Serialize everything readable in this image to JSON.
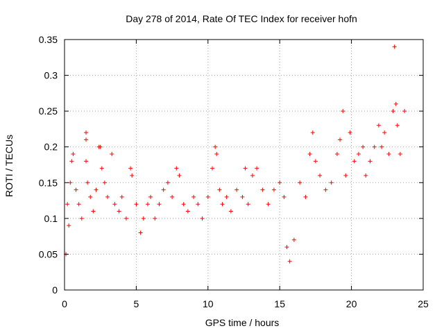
{
  "chart_data": {
    "type": "scatter",
    "title": "Day 278 of 2014, Rate Of TEC Index for receiver hofn",
    "xlabel": "GPS time / hours",
    "ylabel": "ROTI / TECUs",
    "xlim": [
      0,
      25
    ],
    "ylim": [
      0,
      0.35
    ],
    "xticks": [
      0,
      5,
      10,
      15,
      20,
      25
    ],
    "xtick_labels": [
      "0",
      "5",
      "10",
      "15",
      "20",
      "25"
    ],
    "yticks": [
      0,
      0.05,
      0.1,
      0.15,
      0.2,
      0.25,
      0.3,
      0.35
    ],
    "ytick_labels": [
      "0",
      "0.05",
      "0.1",
      "0.15",
      "0.2",
      "0.25",
      "0.3",
      "0.35"
    ],
    "grid": true,
    "marker": "+",
    "color": "#ff0000",
    "series": [
      {
        "name": "ROTI",
        "points": [
          [
            0.1,
            0.05
          ],
          [
            0.2,
            0.12
          ],
          [
            0.3,
            0.09
          ],
          [
            0.4,
            0.15
          ],
          [
            0.5,
            0.18
          ],
          [
            0.6,
            0.19
          ],
          [
            0.8,
            0.14
          ],
          [
            1.0,
            0.12
          ],
          [
            1.2,
            0.1
          ],
          [
            1.5,
            0.22
          ],
          [
            1.5,
            0.21
          ],
          [
            1.5,
            0.18
          ],
          [
            1.6,
            0.15
          ],
          [
            1.8,
            0.13
          ],
          [
            2.0,
            0.11
          ],
          [
            2.2,
            0.14
          ],
          [
            2.4,
            0.2
          ],
          [
            2.5,
            0.2
          ],
          [
            2.6,
            0.17
          ],
          [
            2.8,
            0.15
          ],
          [
            3.0,
            0.13
          ],
          [
            3.3,
            0.19
          ],
          [
            3.5,
            0.12
          ],
          [
            3.8,
            0.11
          ],
          [
            4.0,
            0.13
          ],
          [
            4.3,
            0.1
          ],
          [
            4.6,
            0.17
          ],
          [
            4.7,
            0.16
          ],
          [
            5.0,
            0.12
          ],
          [
            5.3,
            0.08
          ],
          [
            5.5,
            0.1
          ],
          [
            5.8,
            0.12
          ],
          [
            6.0,
            0.13
          ],
          [
            6.3,
            0.1
          ],
          [
            6.6,
            0.12
          ],
          [
            6.9,
            0.14
          ],
          [
            7.2,
            0.15
          ],
          [
            7.5,
            0.13
          ],
          [
            7.8,
            0.17
          ],
          [
            8.0,
            0.16
          ],
          [
            8.3,
            0.12
          ],
          [
            8.6,
            0.11
          ],
          [
            9.0,
            0.13
          ],
          [
            9.3,
            0.12
          ],
          [
            9.6,
            0.1
          ],
          [
            10.0,
            0.13
          ],
          [
            10.3,
            0.17
          ],
          [
            10.5,
            0.2
          ],
          [
            10.6,
            0.19
          ],
          [
            10.8,
            0.14
          ],
          [
            11.0,
            0.12
          ],
          [
            11.3,
            0.13
          ],
          [
            11.6,
            0.11
          ],
          [
            12.0,
            0.14
          ],
          [
            12.4,
            0.13
          ],
          [
            12.6,
            0.17
          ],
          [
            12.8,
            0.12
          ],
          [
            13.1,
            0.16
          ],
          [
            13.4,
            0.17
          ],
          [
            13.8,
            0.14
          ],
          [
            14.2,
            0.12
          ],
          [
            14.6,
            0.14
          ],
          [
            15.0,
            0.15
          ],
          [
            15.3,
            0.13
          ],
          [
            15.5,
            0.06
          ],
          [
            15.7,
            0.04
          ],
          [
            16.0,
            0.07
          ],
          [
            16.4,
            0.15
          ],
          [
            16.8,
            0.13
          ],
          [
            17.1,
            0.19
          ],
          [
            17.3,
            0.22
          ],
          [
            17.5,
            0.18
          ],
          [
            17.8,
            0.16
          ],
          [
            18.2,
            0.14
          ],
          [
            18.6,
            0.15
          ],
          [
            19.0,
            0.19
          ],
          [
            19.2,
            0.21
          ],
          [
            19.4,
            0.25
          ],
          [
            19.6,
            0.16
          ],
          [
            19.9,
            0.22
          ],
          [
            20.2,
            0.18
          ],
          [
            20.5,
            0.19
          ],
          [
            20.8,
            0.2
          ],
          [
            21.0,
            0.16
          ],
          [
            21.3,
            0.18
          ],
          [
            21.6,
            0.2
          ],
          [
            21.9,
            0.23
          ],
          [
            22.1,
            0.2
          ],
          [
            22.3,
            0.22
          ],
          [
            22.6,
            0.19
          ],
          [
            22.9,
            0.25
          ],
          [
            23.0,
            0.34
          ],
          [
            23.1,
            0.26
          ],
          [
            23.2,
            0.23
          ],
          [
            23.4,
            0.19
          ],
          [
            23.7,
            0.25
          ]
        ]
      }
    ]
  }
}
